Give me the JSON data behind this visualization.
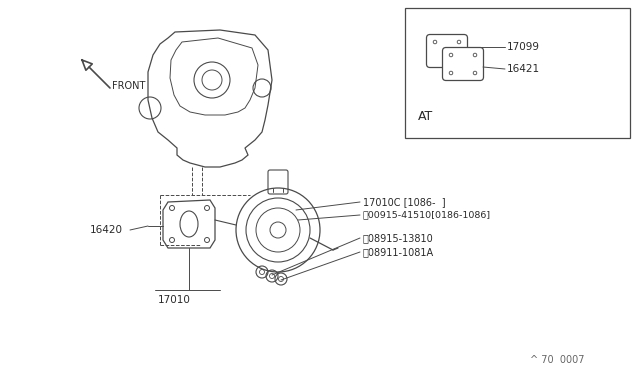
{
  "bg_color": "#ffffff",
  "line_color": "#4a4a4a",
  "text_color": "#2a2a2a",
  "footer_text": "^ 70  0007",
  "labels": {
    "front": "FRONT",
    "at": "AT",
    "17099": "17099",
    "16421": "16421",
    "16420": "16420",
    "17010": "17010",
    "17010C": "17010C [1086-  ]",
    "00915": "ⓜ00915-41510[0186-1086]",
    "08915": "ⓜ08915-13810",
    "08911": "ⓝ08911-1081A"
  }
}
